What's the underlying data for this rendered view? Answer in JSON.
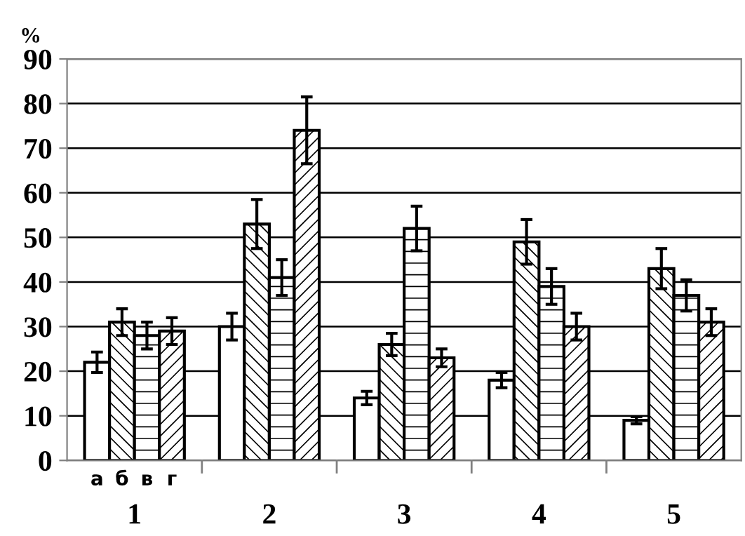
{
  "chart_data": {
    "type": "bar",
    "ylabel": "%",
    "categories": [
      "1",
      "2",
      "3",
      "4",
      "5"
    ],
    "series": [
      {
        "name": "а",
        "color": "#ffffff",
        "values": [
          22,
          30,
          14,
          18,
          9
        ],
        "errors": [
          2.3,
          3,
          1.5,
          1.7,
          0.8
        ]
      },
      {
        "name": "б",
        "color": "#000000",
        "values": [
          31,
          53,
          26,
          49,
          43
        ],
        "errors": [
          3,
          5.5,
          2.5,
          5,
          4.5
        ]
      },
      {
        "name": "в",
        "color": "#000000",
        "values": [
          28,
          41,
          52,
          39,
          37
        ],
        "errors": [
          3,
          4,
          5,
          4,
          3.5
        ]
      },
      {
        "name": "г",
        "color": "#000000",
        "values": [
          29,
          74,
          23,
          30,
          31
        ],
        "errors": [
          3,
          7.5,
          2,
          3,
          3
        ]
      }
    ],
    "ylim": [
      0,
      90
    ],
    "yticks": [
      0,
      10,
      20,
      30,
      40,
      50,
      60,
      70,
      80,
      90
    ],
    "grid": "y",
    "legend": false
  }
}
